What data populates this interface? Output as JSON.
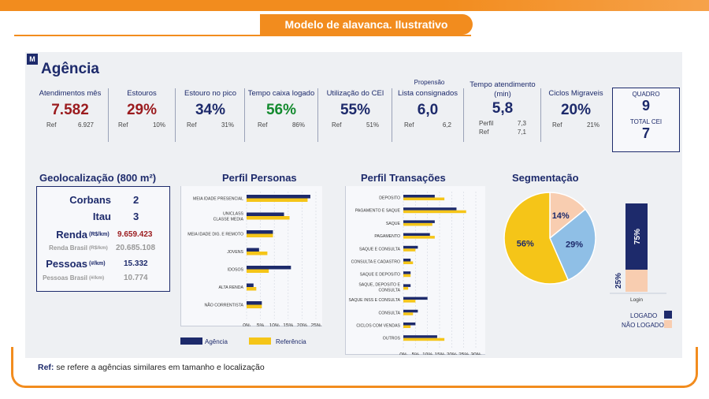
{
  "header": {
    "title": "Modelo de alavanca. Ilustrativo"
  },
  "agency": {
    "logo": "M",
    "title": "Agência"
  },
  "kpis": [
    {
      "label": "Atendimentos mês",
      "value": "7.582",
      "ref_label": "Ref",
      "ref_value": "6.927"
    },
    {
      "label": "Estouros",
      "value": "29%",
      "ref_label": "Ref",
      "ref_value": "10%"
    },
    {
      "label": "Estouro no pico",
      "value": "34%",
      "ref_label": "Ref",
      "ref_value": "31%"
    },
    {
      "label": "Tempo caixa logado",
      "value": "56%",
      "ref_label": "Ref",
      "ref_value": "86%"
    },
    {
      "label": "Utilização do CEI",
      "value": "55%",
      "ref_label": "Ref",
      "ref_value": "51%"
    },
    {
      "label_top": "Propensão",
      "label": "Lista consignados",
      "value": "6,0",
      "ref_label": "Ref",
      "ref_value": "6,2"
    },
    {
      "label": "Tempo atendimento",
      "label2": "(min)",
      "value": "5,8",
      "ref_label": "Perfil",
      "ref_value": "7,3",
      "ref_label2": "Ref",
      "ref_value2": "7,1"
    },
    {
      "label": "Ciclos Migraveis",
      "value": "20%",
      "ref_label": "Ref",
      "ref_value": "21%"
    }
  ],
  "quadro": {
    "label": "QUADRO",
    "value": "9",
    "total_label": "TOTAL CEI",
    "total_value": "7"
  },
  "geo": {
    "title": "Geolocalização (800 m²)",
    "corbans_label": "Corbans",
    "corbans_value": "2",
    "itau_label": "Itau",
    "itau_value": "3",
    "renda_label": "Renda",
    "renda_unit": "(R$/km)",
    "renda_value": "9.659.423",
    "renda_brasil_label": "Renda Brasil",
    "renda_brasil_unit": "(R$/km)",
    "renda_brasil_value": "20.685.108",
    "pessoas_label": "Pessoas",
    "pessoas_unit": "(#/km)",
    "pessoas_value": "15.332",
    "pessoas_brasil_label": "Pessoas Brasil",
    "pessoas_brasil_unit": "(#/km)",
    "pessoas_brasil_value": "10.774"
  },
  "personas": {
    "title": "Perfil Personas"
  },
  "transacoes": {
    "title": "Perfil Transações"
  },
  "segmentacao": {
    "title": "Segmentação"
  },
  "legend": {
    "agencia": "Agência",
    "referencia": "Referência",
    "logado": "LOGADO",
    "nao_logado": "NÃO LOGADO"
  },
  "colors": {
    "navy": "#1d2a6b",
    "yellow": "#f5c518",
    "blue_light": "#8fbfe6",
    "peach": "#f8cdb0",
    "orange": "#f28c1e"
  },
  "footer": {
    "bold": "Ref:",
    "text": " se refere a agências similares em tamanho e localização"
  },
  "chart_data": [
    {
      "type": "bar",
      "orientation": "horizontal",
      "title": "Perfil Personas",
      "categories": [
        "MEIA IDADE PRESENCIAL",
        "UNICLASS CLASSE MEDIA",
        "MEIA IDADE DIG. E REMOTO",
        "JOVENS",
        "IDOSOS",
        "ALTA RENDA",
        "NÃO CORRENTISTA"
      ],
      "series": [
        {
          "name": "Agência",
          "values": [
            23,
            13.5,
            9.5,
            4.5,
            16,
            2.5,
            5.5
          ]
        },
        {
          "name": "Referência",
          "values": [
            22,
            15.5,
            9.5,
            7.5,
            8,
            3.5,
            5.5
          ]
        }
      ],
      "xticks": [
        "0%",
        "5%",
        "10%",
        "15%",
        "20%",
        "25%"
      ],
      "xlim": [
        0,
        25
      ]
    },
    {
      "type": "bar",
      "orientation": "horizontal",
      "title": "Perfil Transações",
      "categories": [
        "DEPOSITO",
        "PAGAMENTO E SAQUE",
        "SAQUE",
        "PAGAMENTO",
        "SAQUE E CONSULTA",
        "CONSULTA E CADASTRO",
        "SAQUE E DEPOSITO",
        "SAQUE, DEPOSITO E CONSULTA",
        "SAQUE INSS E CONSULTA",
        "CONSULTA",
        "CICLOS COM VENDAS",
        "OUTROS"
      ],
      "series": [
        {
          "name": "Agência",
          "values": [
            13,
            22,
            13,
            11,
            6,
            3,
            3,
            3,
            10,
            6,
            5,
            14
          ]
        },
        {
          "name": "Referência",
          "values": [
            17,
            26,
            12,
            13,
            5,
            4,
            3,
            2,
            5,
            4,
            3,
            17
          ]
        }
      ],
      "xticks": [
        "0%",
        "5%",
        "10%",
        "15%",
        "20%",
        "25%",
        "30%"
      ],
      "xlim": [
        0,
        30
      ]
    },
    {
      "type": "pie",
      "title": "Segmentação",
      "labels": [
        "56%",
        "29%",
        "14%"
      ],
      "values": [
        56,
        29,
        14
      ]
    },
    {
      "type": "bar",
      "stacked": true,
      "categories": [
        "Login"
      ],
      "series": [
        {
          "name": "LOGADO",
          "values": [
            75
          ],
          "label": "75%"
        },
        {
          "name": "NÃO LOGADO",
          "values": [
            25
          ],
          "label": "25%"
        }
      ]
    }
  ]
}
